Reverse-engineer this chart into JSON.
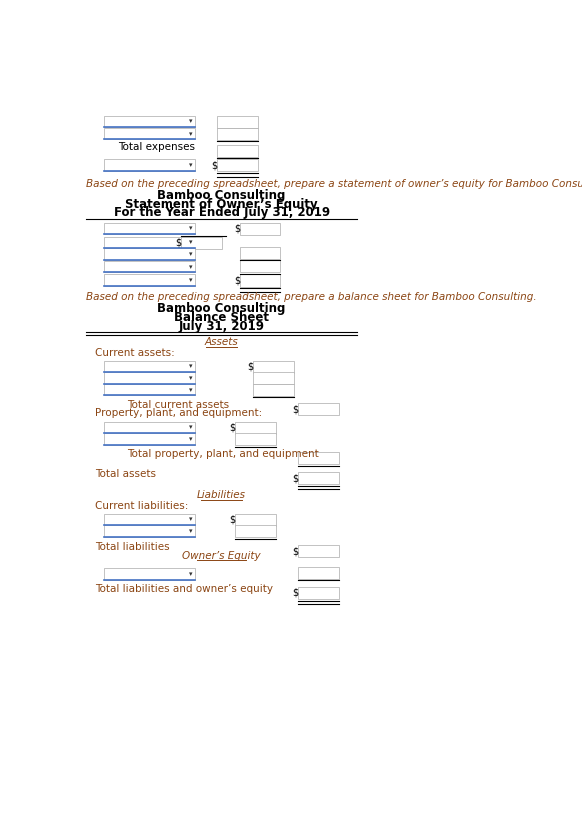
{
  "bg_color": "#ffffff",
  "text_color": "#000000",
  "brown_text": "#8B4513",
  "blue_line": "#4472C4",
  "prompt1": "Based on the preceding spreadsheet, prepare a statement of owner’s equity for Bamboo Consulting.",
  "header1_line1": "Bamboo Consulting",
  "header1_line2": "Statement of Owner’s Equity",
  "header1_line3": "For the Year Ended July 31, 2019",
  "prompt2": "Based on the preceding spreadsheet, prepare a balance sheet for Bamboo Consulting.",
  "header2_line1": "Bamboo Consulting",
  "header2_line2": "Balance Sheet",
  "header2_line3": "July 31, 2019",
  "assets_label": "Assets",
  "current_assets_label": "Current assets:",
  "total_current_assets_label": "Total current assets",
  "ppe_label": "Property, plant, and equipment:",
  "total_ppe_label": "Total property, plant, and equipment",
  "total_assets_label": "Total assets",
  "liabilities_label": "Liabilities",
  "current_liabilities_label": "Current liabilities:",
  "total_liabilities_label": "Total liabilities",
  "owners_equity_label": "Owner’s Equity",
  "total_le_label": "Total liabilities and owner’s equity",
  "total_expenses_label": "Total expenses"
}
